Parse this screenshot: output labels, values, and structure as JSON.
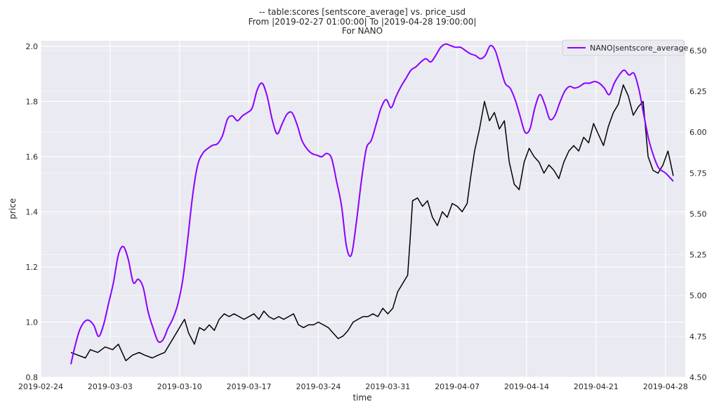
{
  "chart_data": {
    "type": "line",
    "title_lines": [
      "-- table:scores [sentscore_average] vs. price_usd",
      "From |2019-02-27 01:00:00| To |2019-04-28 19:00:00|",
      "For NANO"
    ],
    "xlabel": "time",
    "ylabel": "price",
    "y2label": "",
    "xlim": [
      "2019-02-24",
      "2019-04-30"
    ],
    "ylim": [
      0.8,
      2.02
    ],
    "y2lim": [
      4.5,
      6.56
    ],
    "x_ticks": [
      "2019-02-24",
      "2019-03-03",
      "2019-03-10",
      "2019-03-17",
      "2019-03-24",
      "2019-03-31",
      "2019-04-07",
      "2019-04-14",
      "2019-04-21",
      "2019-04-28"
    ],
    "y_ticks": [
      "0.8",
      "1.0",
      "1.2",
      "1.4",
      "1.6",
      "1.8",
      "2.0"
    ],
    "y2_ticks": [
      "4.50",
      "4.75",
      "5.00",
      "5.25",
      "5.50",
      "5.75",
      "6.00",
      "6.25",
      "6.50"
    ],
    "grid": true,
    "legend_position": "top-right",
    "colors": {
      "background": "#EAEAF2",
      "grid": "#FFFFFF",
      "price": "#000000",
      "sentiment": "#8B00FF"
    },
    "series": [
      {
        "key": "price",
        "axis": "left",
        "color": "#000000",
        "points": [
          [
            "2019-02-27 01:00",
            0.89
          ],
          [
            "2019-02-27 18:00",
            0.88
          ],
          [
            "2019-02-28 12:00",
            0.87
          ],
          [
            "2019-03-01 00:00",
            0.9
          ],
          [
            "2019-03-01 18:00",
            0.89
          ],
          [
            "2019-03-02 12:00",
            0.91
          ],
          [
            "2019-03-03 06:00",
            0.9
          ],
          [
            "2019-03-03 20:00",
            0.92
          ],
          [
            "2019-03-04 08:00",
            0.88
          ],
          [
            "2019-03-04 14:00",
            0.86
          ],
          [
            "2019-03-05 06:00",
            0.88
          ],
          [
            "2019-03-05 22:00",
            0.89
          ],
          [
            "2019-03-06 12:00",
            0.88
          ],
          [
            "2019-03-07 06:00",
            0.87
          ],
          [
            "2019-03-07 20:00",
            0.88
          ],
          [
            "2019-03-08 12:00",
            0.89
          ],
          [
            "2019-03-09 00:00",
            0.92
          ],
          [
            "2019-03-09 12:00",
            0.95
          ],
          [
            "2019-03-10 00:00",
            0.98
          ],
          [
            "2019-03-10 12:00",
            1.01
          ],
          [
            "2019-03-10 22:00",
            0.96
          ],
          [
            "2019-03-11 12:00",
            0.92
          ],
          [
            "2019-03-12 00:00",
            0.98
          ],
          [
            "2019-03-12 12:00",
            0.97
          ],
          [
            "2019-03-13 00:00",
            0.99
          ],
          [
            "2019-03-13 12:00",
            0.97
          ],
          [
            "2019-03-14 00:00",
            1.01
          ],
          [
            "2019-03-14 12:00",
            1.03
          ],
          [
            "2019-03-15 00:00",
            1.02
          ],
          [
            "2019-03-15 12:00",
            1.03
          ],
          [
            "2019-03-16 00:00",
            1.02
          ],
          [
            "2019-03-16 12:00",
            1.01
          ],
          [
            "2019-03-17 00:00",
            1.02
          ],
          [
            "2019-03-17 12:00",
            1.03
          ],
          [
            "2019-03-18 00:00",
            1.01
          ],
          [
            "2019-03-18 12:00",
            1.04
          ],
          [
            "2019-03-19 00:00",
            1.02
          ],
          [
            "2019-03-19 12:00",
            1.01
          ],
          [
            "2019-03-20 00:00",
            1.02
          ],
          [
            "2019-03-20 12:00",
            1.01
          ],
          [
            "2019-03-21 00:00",
            1.02
          ],
          [
            "2019-03-21 12:00",
            1.03
          ],
          [
            "2019-03-22 00:00",
            0.99
          ],
          [
            "2019-03-22 12:00",
            0.98
          ],
          [
            "2019-03-23 00:00",
            0.99
          ],
          [
            "2019-03-23 12:00",
            0.99
          ],
          [
            "2019-03-24 00:00",
            1.0
          ],
          [
            "2019-03-24 12:00",
            0.99
          ],
          [
            "2019-03-25 00:00",
            0.98
          ],
          [
            "2019-03-25 12:00",
            0.96
          ],
          [
            "2019-03-26 00:00",
            0.94
          ],
          [
            "2019-03-26 12:00",
            0.95
          ],
          [
            "2019-03-27 00:00",
            0.97
          ],
          [
            "2019-03-27 12:00",
            1.0
          ],
          [
            "2019-03-28 00:00",
            1.01
          ],
          [
            "2019-03-28 12:00",
            1.02
          ],
          [
            "2019-03-29 00:00",
            1.02
          ],
          [
            "2019-03-29 12:00",
            1.03
          ],
          [
            "2019-03-30 00:00",
            1.02
          ],
          [
            "2019-03-30 12:00",
            1.05
          ],
          [
            "2019-03-31 00:00",
            1.03
          ],
          [
            "2019-03-31 12:00",
            1.05
          ],
          [
            "2019-04-01 00:00",
            1.11
          ],
          [
            "2019-04-01 12:00",
            1.14
          ],
          [
            "2019-04-02 00:00",
            1.17
          ],
          [
            "2019-04-02 06:00",
            1.3
          ],
          [
            "2019-04-02 12:00",
            1.44
          ],
          [
            "2019-04-03 00:00",
            1.45
          ],
          [
            "2019-04-03 12:00",
            1.42
          ],
          [
            "2019-04-04 00:00",
            1.44
          ],
          [
            "2019-04-04 12:00",
            1.38
          ],
          [
            "2019-04-05 00:00",
            1.35
          ],
          [
            "2019-04-05 12:00",
            1.4
          ],
          [
            "2019-04-06 00:00",
            1.38
          ],
          [
            "2019-04-06 12:00",
            1.43
          ],
          [
            "2019-04-07 00:00",
            1.42
          ],
          [
            "2019-04-07 12:00",
            1.4
          ],
          [
            "2019-04-08 00:00",
            1.43
          ],
          [
            "2019-04-08 08:00",
            1.52
          ],
          [
            "2019-04-08 18:00",
            1.62
          ],
          [
            "2019-04-09 06:00",
            1.7
          ],
          [
            "2019-04-09 18:00",
            1.8
          ],
          [
            "2019-04-10 06:00",
            1.73
          ],
          [
            "2019-04-10 18:00",
            1.76
          ],
          [
            "2019-04-11 06:00",
            1.7
          ],
          [
            "2019-04-11 18:00",
            1.73
          ],
          [
            "2019-04-12 06:00",
            1.58
          ],
          [
            "2019-04-12 18:00",
            1.5
          ],
          [
            "2019-04-13 06:00",
            1.48
          ],
          [
            "2019-04-13 18:00",
            1.58
          ],
          [
            "2019-04-14 06:00",
            1.63
          ],
          [
            "2019-04-14 18:00",
            1.6
          ],
          [
            "2019-04-15 06:00",
            1.58
          ],
          [
            "2019-04-15 18:00",
            1.54
          ],
          [
            "2019-04-16 06:00",
            1.57
          ],
          [
            "2019-04-16 18:00",
            1.55
          ],
          [
            "2019-04-17 06:00",
            1.52
          ],
          [
            "2019-04-17 18:00",
            1.58
          ],
          [
            "2019-04-18 06:00",
            1.62
          ],
          [
            "2019-04-18 18:00",
            1.64
          ],
          [
            "2019-04-19 06:00",
            1.62
          ],
          [
            "2019-04-19 18:00",
            1.67
          ],
          [
            "2019-04-20 06:00",
            1.65
          ],
          [
            "2019-04-20 18:00",
            1.72
          ],
          [
            "2019-04-21 06:00",
            1.68
          ],
          [
            "2019-04-21 18:00",
            1.64
          ],
          [
            "2019-04-22 06:00",
            1.71
          ],
          [
            "2019-04-22 18:00",
            1.76
          ],
          [
            "2019-04-23 06:00",
            1.79
          ],
          [
            "2019-04-23 18:00",
            1.86
          ],
          [
            "2019-04-24 06:00",
            1.82
          ],
          [
            "2019-04-24 18:00",
            1.75
          ],
          [
            "2019-04-25 06:00",
            1.78
          ],
          [
            "2019-04-25 18:00",
            1.8
          ],
          [
            "2019-04-26 06:00",
            1.6
          ],
          [
            "2019-04-26 18:00",
            1.55
          ],
          [
            "2019-04-27 06:00",
            1.54
          ],
          [
            "2019-04-27 18:00",
            1.57
          ],
          [
            "2019-04-28 06:00",
            1.62
          ],
          [
            "2019-04-28 12:00",
            1.58
          ],
          [
            "2019-04-28 19:00",
            1.53
          ]
        ]
      },
      {
        "key": "sentiment",
        "name": "NANO|sentscore_average",
        "axis": "right",
        "color": "#8B00FF",
        "points": [
          [
            "2019-02-27 01:00",
            4.58
          ],
          [
            "2019-02-27 12:00",
            4.7
          ],
          [
            "2019-02-28 00:00",
            4.8
          ],
          [
            "2019-02-28 16:00",
            4.85
          ],
          [
            "2019-03-01 08:00",
            4.82
          ],
          [
            "2019-03-01 20:00",
            4.75
          ],
          [
            "2019-03-02 08:00",
            4.82
          ],
          [
            "2019-03-02 20:00",
            4.95
          ],
          [
            "2019-03-03 08:00",
            5.08
          ],
          [
            "2019-03-03 20:00",
            5.25
          ],
          [
            "2019-03-04 08:00",
            5.3
          ],
          [
            "2019-03-04 20:00",
            5.22
          ],
          [
            "2019-03-05 08:00",
            5.08
          ],
          [
            "2019-03-05 20:00",
            5.1
          ],
          [
            "2019-03-06 08:00",
            5.05
          ],
          [
            "2019-03-06 20:00",
            4.9
          ],
          [
            "2019-03-07 08:00",
            4.8
          ],
          [
            "2019-03-07 20:00",
            4.72
          ],
          [
            "2019-03-08 08:00",
            4.73
          ],
          [
            "2019-03-08 20:00",
            4.8
          ],
          [
            "2019-03-09 08:00",
            4.86
          ],
          [
            "2019-03-09 20:00",
            4.95
          ],
          [
            "2019-03-10 08:00",
            5.1
          ],
          [
            "2019-03-10 20:00",
            5.35
          ],
          [
            "2019-03-11 08:00",
            5.62
          ],
          [
            "2019-03-11 20:00",
            5.8
          ],
          [
            "2019-03-12 08:00",
            5.87
          ],
          [
            "2019-03-12 20:00",
            5.9
          ],
          [
            "2019-03-13 08:00",
            5.92
          ],
          [
            "2019-03-13 20:00",
            5.93
          ],
          [
            "2019-03-14 08:00",
            5.98
          ],
          [
            "2019-03-14 20:00",
            6.08
          ],
          [
            "2019-03-15 08:00",
            6.1
          ],
          [
            "2019-03-15 20:00",
            6.07
          ],
          [
            "2019-03-16 08:00",
            6.1
          ],
          [
            "2019-03-16 20:00",
            6.12
          ],
          [
            "2019-03-17 08:00",
            6.15
          ],
          [
            "2019-03-17 20:00",
            6.26
          ],
          [
            "2019-03-18 08:00",
            6.3
          ],
          [
            "2019-03-18 20:00",
            6.22
          ],
          [
            "2019-03-19 08:00",
            6.08
          ],
          [
            "2019-03-19 20:00",
            5.99
          ],
          [
            "2019-03-20 08:00",
            6.05
          ],
          [
            "2019-03-20 20:00",
            6.11
          ],
          [
            "2019-03-21 08:00",
            6.12
          ],
          [
            "2019-03-21 20:00",
            6.05
          ],
          [
            "2019-03-22 08:00",
            5.95
          ],
          [
            "2019-03-22 20:00",
            5.9
          ],
          [
            "2019-03-23 08:00",
            5.87
          ],
          [
            "2019-03-23 20:00",
            5.86
          ],
          [
            "2019-03-24 08:00",
            5.85
          ],
          [
            "2019-03-24 20:00",
            5.87
          ],
          [
            "2019-03-25 08:00",
            5.84
          ],
          [
            "2019-03-25 20:00",
            5.7
          ],
          [
            "2019-03-26 08:00",
            5.55
          ],
          [
            "2019-03-26 20:00",
            5.3
          ],
          [
            "2019-03-27 08:00",
            5.25
          ],
          [
            "2019-03-27 20:00",
            5.45
          ],
          [
            "2019-03-28 08:00",
            5.7
          ],
          [
            "2019-03-28 20:00",
            5.9
          ],
          [
            "2019-03-29 08:00",
            5.95
          ],
          [
            "2019-03-29 20:00",
            6.05
          ],
          [
            "2019-03-30 08:00",
            6.15
          ],
          [
            "2019-03-30 20:00",
            6.2
          ],
          [
            "2019-03-31 08:00",
            6.15
          ],
          [
            "2019-03-31 20:00",
            6.22
          ],
          [
            "2019-04-01 08:00",
            6.28
          ],
          [
            "2019-04-01 20:00",
            6.33
          ],
          [
            "2019-04-02 08:00",
            6.38
          ],
          [
            "2019-04-02 20:00",
            6.4
          ],
          [
            "2019-04-03 08:00",
            6.43
          ],
          [
            "2019-04-03 20:00",
            6.45
          ],
          [
            "2019-04-04 08:00",
            6.43
          ],
          [
            "2019-04-04 20:00",
            6.47
          ],
          [
            "2019-04-05 08:00",
            6.52
          ],
          [
            "2019-04-05 20:00",
            6.54
          ],
          [
            "2019-04-06 08:00",
            6.53
          ],
          [
            "2019-04-06 20:00",
            6.52
          ],
          [
            "2019-04-07 08:00",
            6.52
          ],
          [
            "2019-04-07 20:00",
            6.5
          ],
          [
            "2019-04-08 08:00",
            6.48
          ],
          [
            "2019-04-08 20:00",
            6.47
          ],
          [
            "2019-04-09 08:00",
            6.45
          ],
          [
            "2019-04-09 20:00",
            6.47
          ],
          [
            "2019-04-10 08:00",
            6.53
          ],
          [
            "2019-04-10 20:00",
            6.5
          ],
          [
            "2019-04-11 08:00",
            6.4
          ],
          [
            "2019-04-11 20:00",
            6.3
          ],
          [
            "2019-04-12 08:00",
            6.27
          ],
          [
            "2019-04-12 20:00",
            6.2
          ],
          [
            "2019-04-13 08:00",
            6.1
          ],
          [
            "2019-04-13 20:00",
            6.0
          ],
          [
            "2019-04-14 08:00",
            6.02
          ],
          [
            "2019-04-14 20:00",
            6.15
          ],
          [
            "2019-04-15 08:00",
            6.23
          ],
          [
            "2019-04-15 20:00",
            6.17
          ],
          [
            "2019-04-16 08:00",
            6.08
          ],
          [
            "2019-04-16 20:00",
            6.1
          ],
          [
            "2019-04-17 08:00",
            6.18
          ],
          [
            "2019-04-17 20:00",
            6.25
          ],
          [
            "2019-04-18 08:00",
            6.28
          ],
          [
            "2019-04-18 20:00",
            6.27
          ],
          [
            "2019-04-19 08:00",
            6.28
          ],
          [
            "2019-04-19 20:00",
            6.3
          ],
          [
            "2019-04-20 08:00",
            6.3
          ],
          [
            "2019-04-20 20:00",
            6.31
          ],
          [
            "2019-04-21 08:00",
            6.3
          ],
          [
            "2019-04-21 20:00",
            6.27
          ],
          [
            "2019-04-22 08:00",
            6.23
          ],
          [
            "2019-04-22 20:00",
            6.3
          ],
          [
            "2019-04-23 08:00",
            6.35
          ],
          [
            "2019-04-23 20:00",
            6.38
          ],
          [
            "2019-04-24 08:00",
            6.35
          ],
          [
            "2019-04-24 20:00",
            6.36
          ],
          [
            "2019-04-25 08:00",
            6.26
          ],
          [
            "2019-04-25 20:00",
            6.1
          ],
          [
            "2019-04-26 08:00",
            5.95
          ],
          [
            "2019-04-26 20:00",
            5.85
          ],
          [
            "2019-04-27 08:00",
            5.78
          ],
          [
            "2019-04-28 00:00",
            5.75
          ],
          [
            "2019-04-28 19:00",
            5.7
          ]
        ]
      }
    ]
  }
}
